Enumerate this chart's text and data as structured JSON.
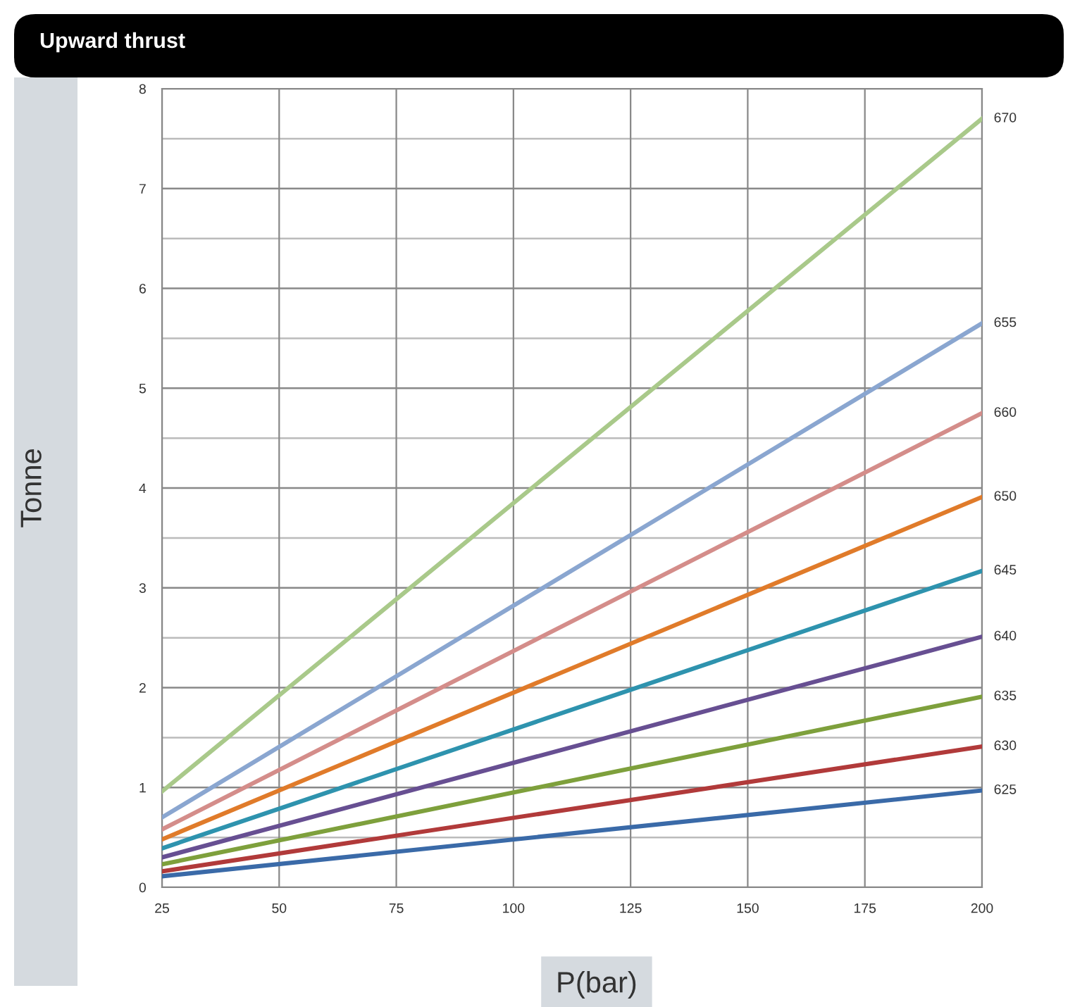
{
  "chart_data": {
    "type": "line",
    "title": "Upward thrust",
    "xlabel": "P(bar)",
    "ylabel": "Tonne",
    "x": [
      25,
      200
    ],
    "series": [
      {
        "name": "670",
        "color": "#a9c98a",
        "values": [
          0.96,
          7.7
        ]
      },
      {
        "name": "655",
        "color": "#8aa6d0",
        "values": [
          0.7,
          5.65
        ]
      },
      {
        "name": "660",
        "color": "#d48d8a",
        "values": [
          0.58,
          4.75
        ]
      },
      {
        "name": "650",
        "color": "#e07b2a",
        "values": [
          0.48,
          3.91
        ]
      },
      {
        "name": "645",
        "color": "#2e93ae",
        "values": [
          0.39,
          3.17
        ]
      },
      {
        "name": "640",
        "color": "#674f92",
        "values": [
          0.3,
          2.51
        ]
      },
      {
        "name": "635",
        "color": "#7ea03c",
        "values": [
          0.23,
          1.91
        ]
      },
      {
        "name": "630",
        "color": "#b13a3a",
        "values": [
          0.16,
          1.41
        ]
      },
      {
        "name": "625",
        "color": "#3a6aa8",
        "values": [
          0.11,
          0.97
        ]
      }
    ],
    "xlim": [
      25,
      200
    ],
    "xticks": [
      25,
      50,
      75,
      100,
      125,
      150,
      175,
      200
    ],
    "ylim": [
      0,
      8
    ],
    "yticks": [
      0,
      {
        "value": 0.5,
        "label": null
      },
      1,
      {
        "value": 1.5,
        "label": null
      },
      2,
      {
        "value": 2.5,
        "label": null
      },
      3,
      {
        "value": 3.5,
        "label": null
      },
      4,
      {
        "value": 4.5,
        "label": null
      },
      5,
      {
        "value": 5.5,
        "label": null
      },
      6,
      {
        "value": 6.5,
        "label": null
      },
      7,
      {
        "value": 7.5,
        "label": null
      },
      8
    ],
    "grid": true,
    "legend": false,
    "marker": "none",
    "line_style": "solid"
  }
}
